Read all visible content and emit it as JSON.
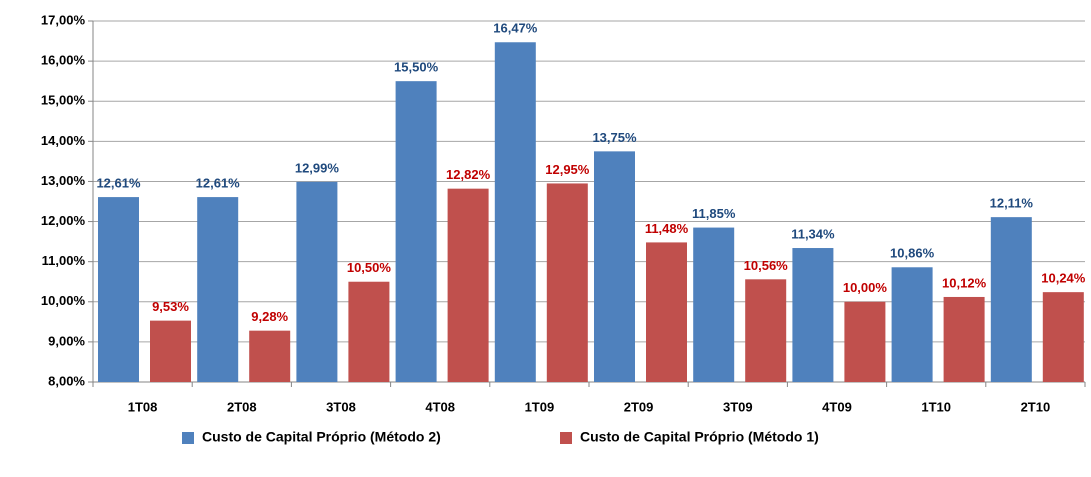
{
  "chart_data": {
    "type": "bar",
    "categories": [
      "1T08",
      "2T08",
      "3T08",
      "4T08",
      "1T09",
      "2T09",
      "3T09",
      "4T09",
      "1T10",
      "2T10"
    ],
    "series": [
      {
        "name": "Custo de Capital Próprio (Método 2)",
        "color": "#4f81bd",
        "label_color": "#1f497d",
        "values": [
          12.61,
          12.61,
          12.99,
          15.5,
          16.47,
          13.75,
          11.85,
          11.34,
          10.86,
          12.11
        ],
        "value_labels": [
          "12,61%",
          "12,61%",
          "12,99%",
          "15,50%",
          "16,47%",
          "13,75%",
          "11,85%",
          "11,34%",
          "10,86%",
          "12,11%"
        ]
      },
      {
        "name": "Custo de Capital Próprio (Método 1)",
        "color": "#c0504d",
        "label_color": "#c00000",
        "values": [
          9.53,
          9.28,
          10.5,
          12.82,
          12.95,
          11.48,
          10.56,
          10.0,
          10.12,
          10.24
        ],
        "value_labels": [
          "9,53%",
          "9,28%",
          "10,50%",
          "12,82%",
          "12,95%",
          "11,48%",
          "10,56%",
          "10,00%",
          "10,12%",
          "10,24%"
        ]
      }
    ],
    "ylim": [
      8,
      17
    ],
    "yticks": [
      {
        "value": 8,
        "label": "8,00%"
      },
      {
        "value": 9,
        "label": "9,00%"
      },
      {
        "value": 10,
        "label": "10,00%"
      },
      {
        "value": 11,
        "label": "11,00%"
      },
      {
        "value": 12,
        "label": "12,00%"
      },
      {
        "value": 13,
        "label": "13,00%"
      },
      {
        "value": 14,
        "label": "14,00%"
      },
      {
        "value": 15,
        "label": "15,00%"
      },
      {
        "value": 16,
        "label": "16,00%"
      },
      {
        "value": 17,
        "label": "17,00%"
      }
    ],
    "grid": true,
    "legend": "bottom"
  }
}
